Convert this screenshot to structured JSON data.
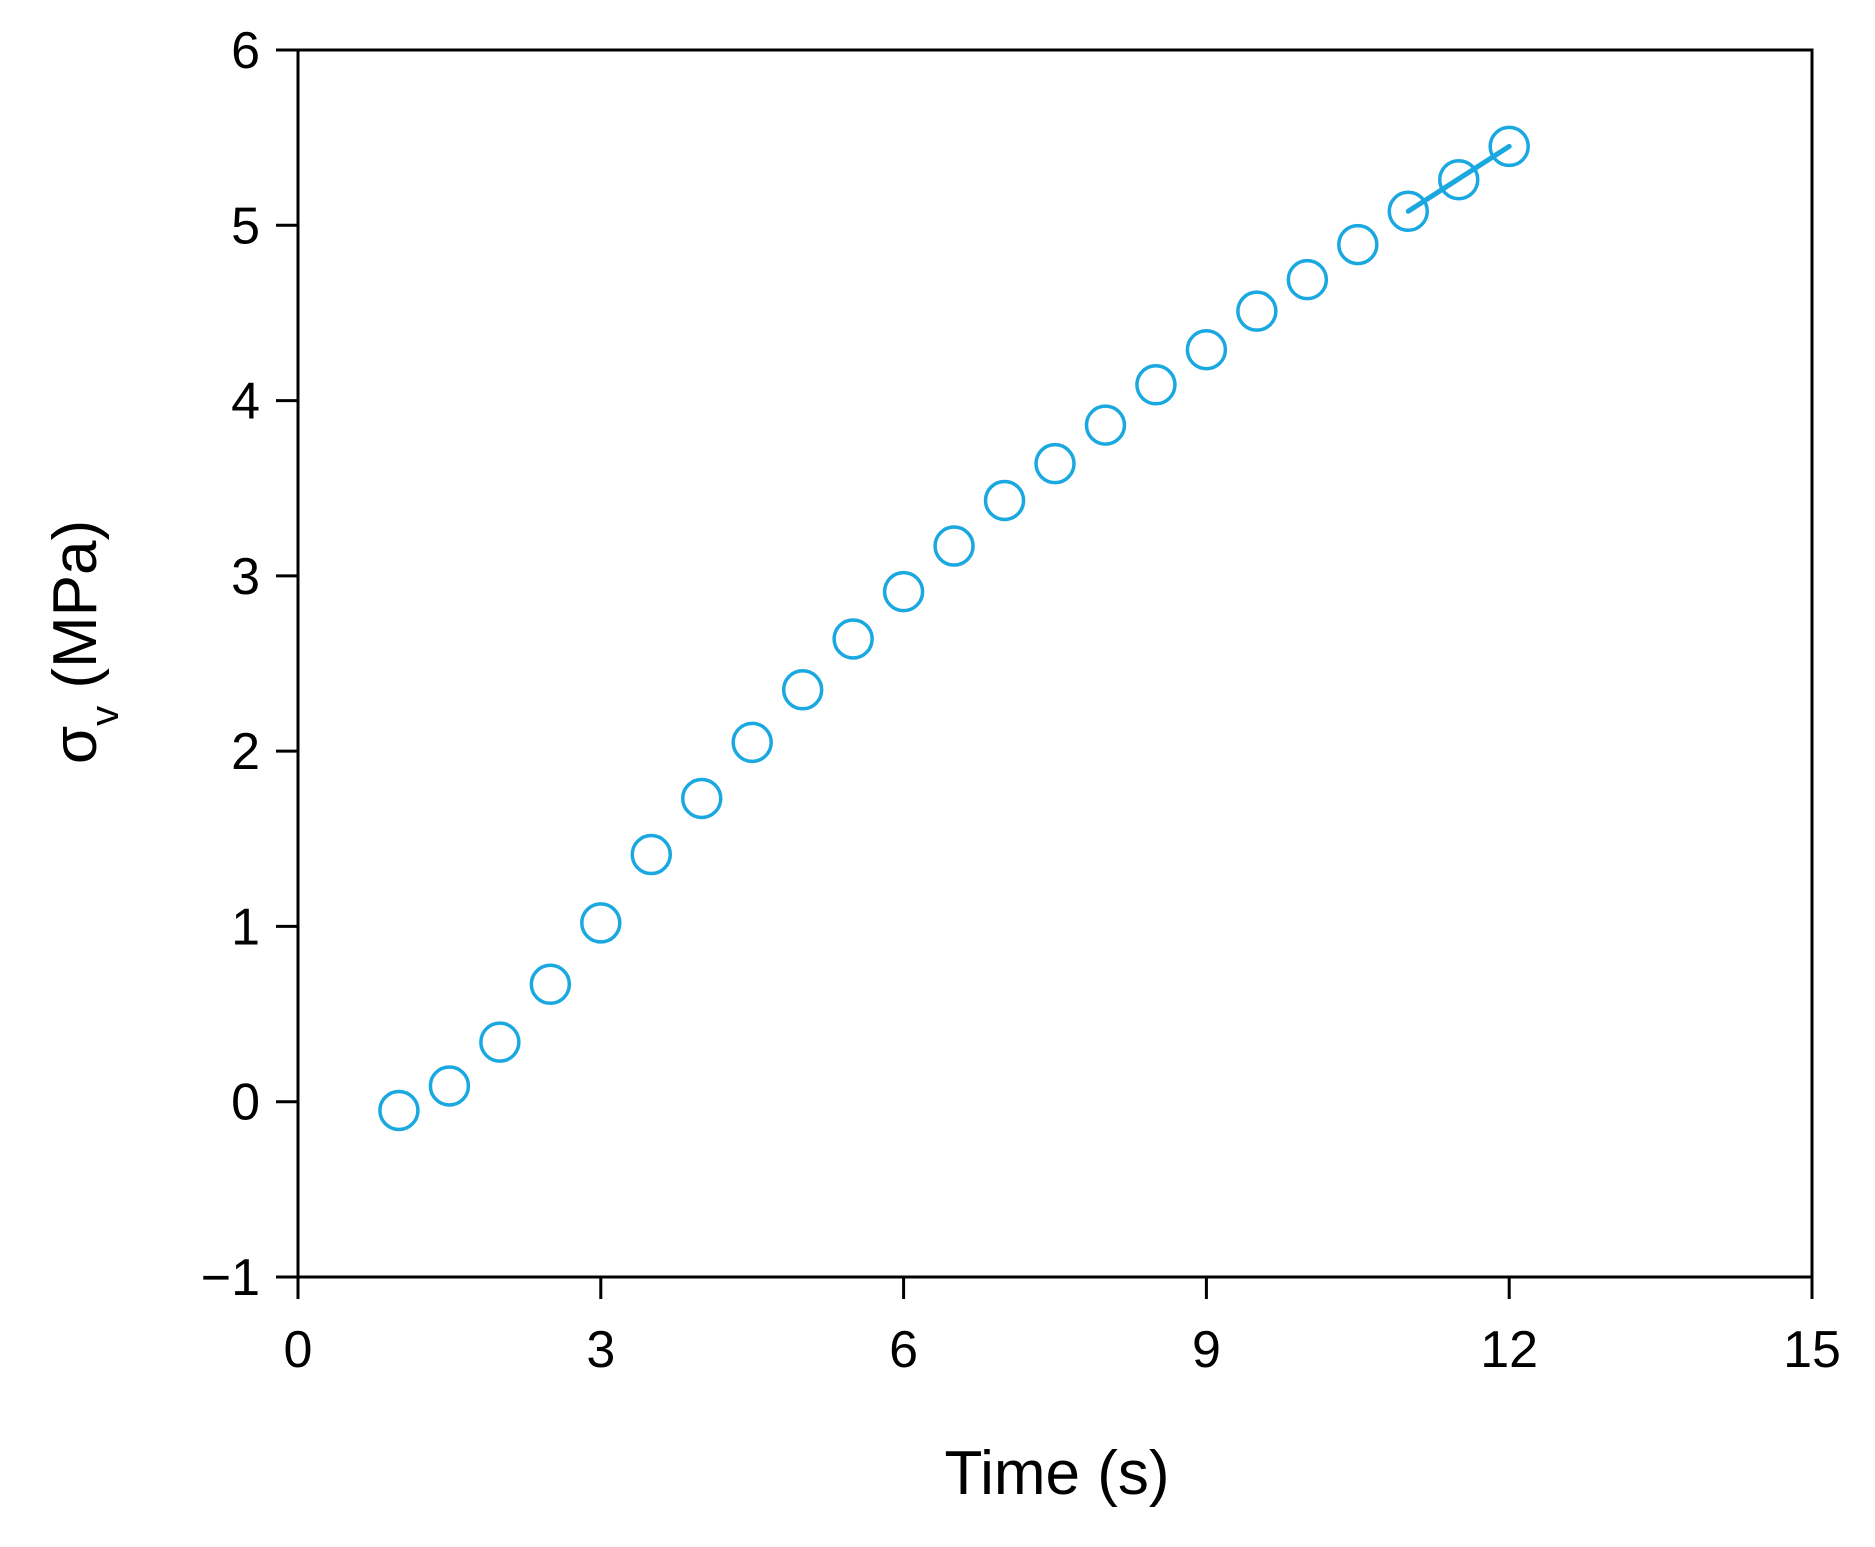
{
  "chart_data": {
    "type": "scatter",
    "title": "",
    "xlabel": "Time (s)",
    "ylabel_symbol": "σ",
    "ylabel_subscript": "v",
    "ylabel_unit": "(MPa)",
    "xlim": [
      0,
      15
    ],
    "ylim": [
      -1,
      6
    ],
    "xticks": [
      "0",
      "3",
      "6",
      "9",
      "12",
      "15"
    ],
    "xtick_values": [
      0,
      3,
      6,
      9,
      12,
      15
    ],
    "yticks": [
      "−1",
      "0",
      "1",
      "2",
      "3",
      "4",
      "5",
      "6"
    ],
    "ytick_values": [
      -1,
      0,
      1,
      2,
      3,
      4,
      5,
      6
    ],
    "grid": false,
    "marker_color": "#1aa8e0",
    "points": [
      {
        "x": 1.0,
        "y": -0.05
      },
      {
        "x": 1.5,
        "y": 0.09
      },
      {
        "x": 2.0,
        "y": 0.34
      },
      {
        "x": 2.5,
        "y": 0.67
      },
      {
        "x": 3.0,
        "y": 1.02
      },
      {
        "x": 3.5,
        "y": 1.41
      },
      {
        "x": 4.0,
        "y": 1.73
      },
      {
        "x": 4.5,
        "y": 2.05
      },
      {
        "x": 5.0,
        "y": 2.35
      },
      {
        "x": 5.5,
        "y": 2.64
      },
      {
        "x": 6.0,
        "y": 2.91
      },
      {
        "x": 6.5,
        "y": 3.17
      },
      {
        "x": 7.0,
        "y": 3.43
      },
      {
        "x": 7.5,
        "y": 3.64
      },
      {
        "x": 8.0,
        "y": 3.86
      },
      {
        "x": 8.5,
        "y": 4.09
      },
      {
        "x": 9.0,
        "y": 4.29
      },
      {
        "x": 9.5,
        "y": 4.51
      },
      {
        "x": 10.0,
        "y": 4.69
      },
      {
        "x": 10.5,
        "y": 4.89
      },
      {
        "x": 11.0,
        "y": 5.08
      },
      {
        "x": 11.5,
        "y": 5.26
      },
      {
        "x": 12.0,
        "y": 5.45
      }
    ],
    "fit_line": {
      "x": [
        11.0,
        12.0
      ],
      "y": [
        5.08,
        5.45
      ]
    }
  }
}
